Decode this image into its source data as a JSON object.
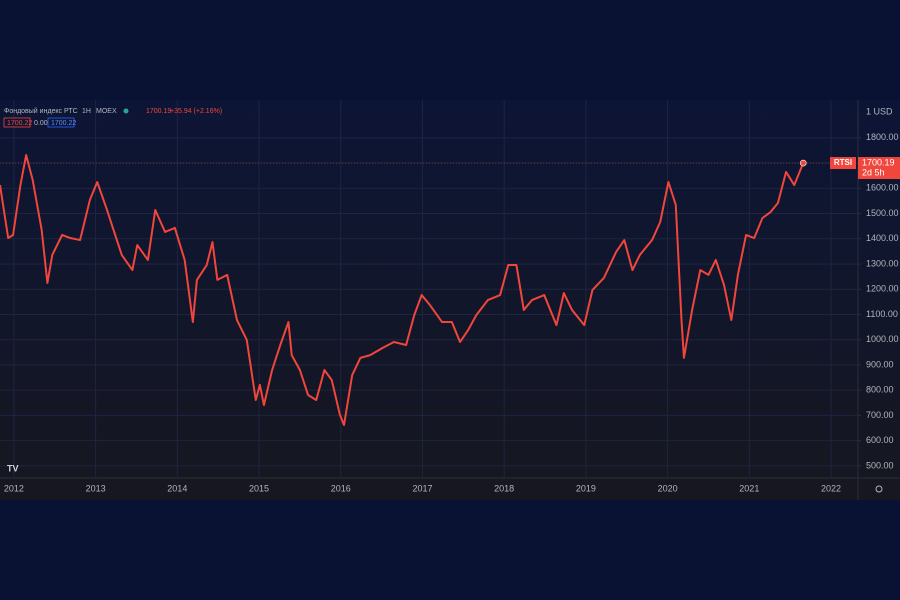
{
  "chart_data": {
    "type": "line",
    "title": "Фондовый индекс РТС",
    "interval": "1Н",
    "exchange": "MOEX",
    "last_price": "1700.19",
    "change": "+35.94 (+2.16%)",
    "bid": "1700.22",
    "spread": "0.00",
    "ask": "1700.22",
    "currency": "1 USD",
    "ticker": "RTSI",
    "countdown": "2d 5h",
    "grid": true,
    "x": [
      2011.83,
      2011.93,
      2011.99,
      2012.08,
      2012.15,
      2012.23,
      2012.34,
      2012.41,
      2012.47,
      2012.59,
      2012.69,
      2012.81,
      2012.93,
      2013.02,
      2013.14,
      2013.26,
      2013.32,
      2013.45,
      2013.51,
      2013.64,
      2013.73,
      2013.85,
      2013.97,
      2014.09,
      2014.19,
      2014.24,
      2014.36,
      2014.43,
      2014.49,
      2014.61,
      2014.73,
      2014.85,
      2014.96,
      2015.01,
      2015.06,
      2015.16,
      2015.26,
      2015.36,
      2015.4,
      2015.5,
      2015.6,
      2015.7,
      2015.8,
      2015.89,
      2015.99,
      2016.04,
      2016.14,
      2016.24,
      2016.36,
      2016.51,
      2016.65,
      2016.8,
      2016.9,
      2016.99,
      2017.09,
      2017.24,
      2017.36,
      2017.46,
      2017.56,
      2017.66,
      2017.8,
      2017.95,
      2018.05,
      2018.15,
      2018.24,
      2018.34,
      2018.49,
      2018.64,
      2018.73,
      2018.83,
      2018.98,
      2019.08,
      2019.22,
      2019.37,
      2019.47,
      2019.57,
      2019.66,
      2019.81,
      2019.91,
      2020.01,
      2020.1,
      2020.17,
      2020.2,
      2020.3,
      2020.4,
      2020.5,
      2020.59,
      2020.69,
      2020.78,
      2020.86,
      2020.96,
      2021.06,
      2021.16,
      2021.26,
      2021.35,
      2021.45,
      2021.55,
      2021.66
    ],
    "series": [
      {
        "name": "RTSI",
        "color": "#f0463c",
        "values": [
          1613,
          1403,
          1415,
          1613,
          1732,
          1633,
          1435,
          1225,
          1336,
          1415,
          1403,
          1395,
          1554,
          1625,
          1514,
          1395,
          1336,
          1276,
          1375,
          1316,
          1514,
          1427,
          1443,
          1316,
          1070,
          1237,
          1296,
          1387,
          1237,
          1257,
          1078,
          999,
          761,
          821,
          741,
          880,
          979,
          1070,
          939,
          880,
          781,
          761,
          880,
          840,
          702,
          662,
          860,
          928,
          939,
          967,
          991,
          979,
          1098,
          1177,
          1138,
          1070,
          1070,
          991,
          1039,
          1098,
          1157,
          1177,
          1296,
          1296,
          1118,
          1157,
          1177,
          1058,
          1185,
          1118,
          1058,
          1197,
          1245,
          1348,
          1395,
          1276,
          1336,
          1395,
          1467,
          1625,
          1534,
          1078,
          928,
          1118,
          1276,
          1257,
          1316,
          1217,
          1078,
          1257,
          1415,
          1403,
          1482,
          1506,
          1542,
          1665,
          1613,
          1700.19
        ]
      }
    ],
    "xlim": [
      2011.83,
      2022.33
    ],
    "xticks": [
      2012,
      2013,
      2014,
      2015,
      2016,
      2017,
      2018,
      2019,
      2020,
      2021,
      2022
    ],
    "ylim": [
      452,
      1950
    ],
    "yticks": [
      {
        "value": 500,
        "label": "500.00"
      },
      {
        "value": 600,
        "label": "600.00"
      },
      {
        "value": 700,
        "label": "700.00"
      },
      {
        "value": 800,
        "label": "800.00"
      },
      {
        "value": 900,
        "label": "900.00"
      },
      {
        "value": 1000,
        "label": "1000.00"
      },
      {
        "value": 1100,
        "label": "1100.00"
      },
      {
        "value": 1200,
        "label": "1200.00"
      },
      {
        "value": 1300,
        "label": "1300.00"
      },
      {
        "value": 1400,
        "label": "1400.00"
      },
      {
        "value": 1500,
        "label": "1500.00"
      },
      {
        "value": 1600,
        "label": "1600.00"
      },
      {
        "value": 1700,
        "label": "1700.00"
      },
      {
        "value": 1800,
        "label": "1800.00"
      }
    ]
  }
}
